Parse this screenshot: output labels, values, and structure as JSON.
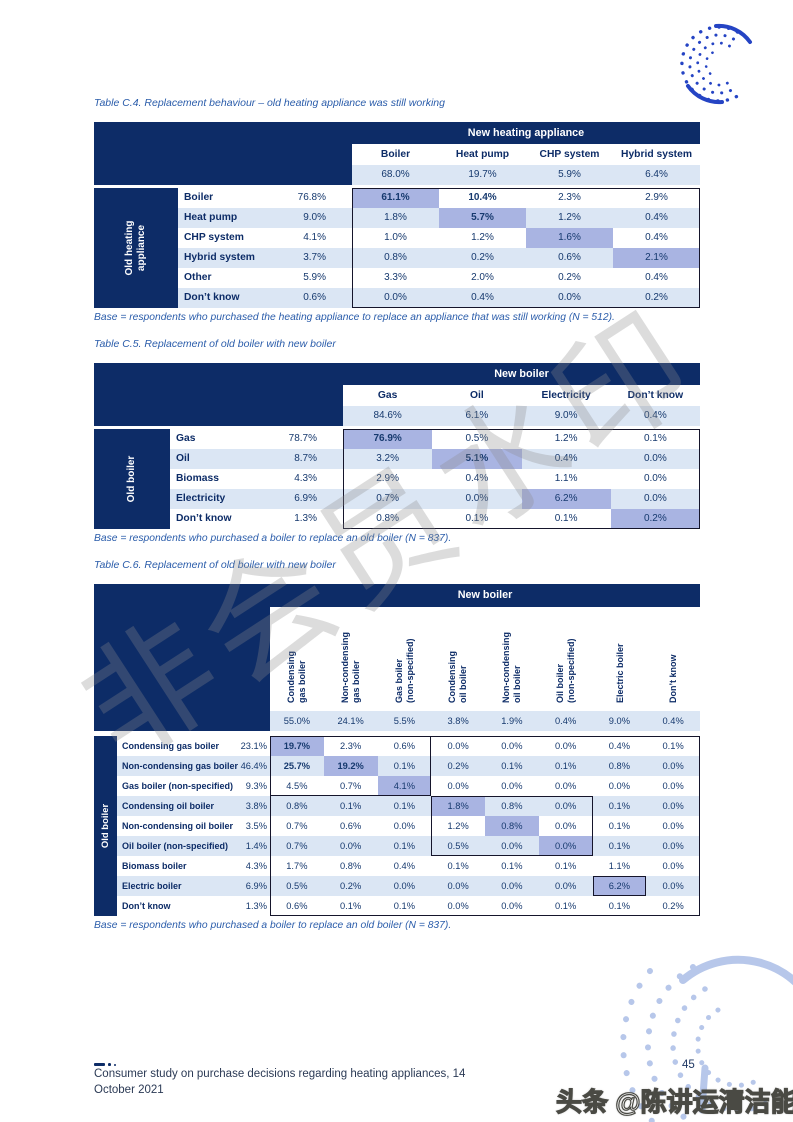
{
  "colors": {
    "navy": "#0d2c67",
    "light_blue": "#dbe6f4",
    "highlight": "#a9b4e2",
    "caption_blue": "#2a5caa",
    "value_text": "#16396e",
    "logo_blue": "#2544c4",
    "deco_blue": "#b7c7ea"
  },
  "tables": [
    {
      "caption": "Table C.4. Replacement behaviour – old heating appliance was still working",
      "banner": "New heating appliance",
      "side_label": "Old heating\nappliance",
      "columns": [
        "Boiler",
        "Heat pump",
        "CHP system",
        "Hybrid system"
      ],
      "totals": [
        "68.0%",
        "19.7%",
        "5.9%",
        "6.4%"
      ],
      "rows": [
        {
          "label": "Boiler",
          "total": "76.8%",
          "values": [
            "61.1%",
            "10.4%",
            "2.3%",
            "2.9%"
          ],
          "highlight": [
            0
          ],
          "bold": [
            0,
            1
          ]
        },
        {
          "label": "Heat pump",
          "total": "9.0%",
          "values": [
            "1.8%",
            "5.7%",
            "1.2%",
            "0.4%"
          ],
          "highlight": [
            1
          ],
          "bold": [
            1
          ]
        },
        {
          "label": "CHP system",
          "total": "4.1%",
          "values": [
            "1.0%",
            "1.2%",
            "1.6%",
            "0.4%"
          ],
          "highlight": [
            2
          ],
          "bold": []
        },
        {
          "label": "Hybrid system",
          "total": "3.7%",
          "values": [
            "0.8%",
            "0.2%",
            "0.6%",
            "2.1%"
          ],
          "highlight": [
            3
          ],
          "bold": []
        },
        {
          "label": "Other",
          "total": "5.9%",
          "values": [
            "3.3%",
            "2.0%",
            "0.2%",
            "0.4%"
          ],
          "highlight": [],
          "bold": []
        },
        {
          "label": "Don’t know",
          "total": "0.6%",
          "values": [
            "0.0%",
            "0.4%",
            "0.0%",
            "0.2%"
          ],
          "highlight": [],
          "bold": []
        }
      ],
      "outline_groups": [
        [
          0,
          5,
          0,
          3
        ]
      ],
      "base_note": "Base = respondents who purchased the heating appliance to replace an appliance that was still working (N = 512)."
    },
    {
      "caption": "Table C.5. Replacement of old boiler with new boiler",
      "banner": "New boiler",
      "side_label": "Old boiler",
      "columns": [
        "Gas",
        "Oil",
        "Electricity",
        "Don’t know"
      ],
      "totals": [
        "84.6%",
        "6.1%",
        "9.0%",
        "0.4%"
      ],
      "rows": [
        {
          "label": "Gas",
          "total": "78.7%",
          "values": [
            "76.9%",
            "0.5%",
            "1.2%",
            "0.1%"
          ],
          "highlight": [
            0
          ],
          "bold": [
            0
          ]
        },
        {
          "label": "Oil",
          "total": "8.7%",
          "values": [
            "3.2%",
            "5.1%",
            "0.4%",
            "0.0%"
          ],
          "highlight": [
            1
          ],
          "bold": [
            1
          ]
        },
        {
          "label": "Biomass",
          "total": "4.3%",
          "values": [
            "2.9%",
            "0.4%",
            "1.1%",
            "0.0%"
          ],
          "highlight": [],
          "bold": []
        },
        {
          "label": "Electricity",
          "total": "6.9%",
          "values": [
            "0.7%",
            "0.0%",
            "6.2%",
            "0.0%"
          ],
          "highlight": [
            2
          ],
          "bold": []
        },
        {
          "label": "Don’t know",
          "total": "1.3%",
          "values": [
            "0.8%",
            "0.1%",
            "0.1%",
            "0.2%"
          ],
          "highlight": [
            3
          ],
          "bold": []
        }
      ],
      "outline_groups": [
        [
          0,
          4,
          0,
          3
        ]
      ],
      "base_note": "Base = respondents who purchased a boiler to replace an old boiler (N = 837)."
    },
    {
      "caption": "Table C.6. Replacement of old boiler with new boiler",
      "banner": "New boiler",
      "side_label": "Old boiler",
      "columns": [
        "Condensing\ngas boiler",
        "Non-condensing\ngas boiler",
        "Gas boiler\n(non-specified)",
        "Condensing\noil boiler",
        "Non-condensing\noil boiler",
        "Oil boiler\n(non-specified)",
        "Electric boiler",
        "Don’t know"
      ],
      "totals": [
        "55.0%",
        "24.1%",
        "5.5%",
        "3.8%",
        "1.9%",
        "0.4%",
        "9.0%",
        "0.4%"
      ],
      "rows": [
        {
          "label": "Condensing gas boiler",
          "total": "23.1%",
          "values": [
            "19.7%",
            "2.3%",
            "0.6%",
            "0.0%",
            "0.0%",
            "0.0%",
            "0.4%",
            "0.1%"
          ],
          "highlight": [
            0
          ],
          "bold": [
            0
          ]
        },
        {
          "label": "Non-condensing gas boiler",
          "total": "46.4%",
          "values": [
            "25.7%",
            "19.2%",
            "0.1%",
            "0.2%",
            "0.1%",
            "0.1%",
            "0.8%",
            "0.0%"
          ],
          "highlight": [
            1
          ],
          "bold": [
            0,
            1
          ]
        },
        {
          "label": "Gas boiler (non-specified)",
          "total": "9.3%",
          "values": [
            "4.5%",
            "0.7%",
            "4.1%",
            "0.0%",
            "0.0%",
            "0.0%",
            "0.0%",
            "0.0%"
          ],
          "highlight": [
            2
          ],
          "bold": []
        },
        {
          "label": "Condensing oil boiler",
          "total": "3.8%",
          "values": [
            "0.8%",
            "0.1%",
            "0.1%",
            "1.8%",
            "0.8%",
            "0.0%",
            "0.1%",
            "0.0%"
          ],
          "highlight": [
            3
          ],
          "bold": []
        },
        {
          "label": "Non-condensing oil boiler",
          "total": "3.5%",
          "values": [
            "0.7%",
            "0.6%",
            "0.0%",
            "1.2%",
            "0.8%",
            "0.0%",
            "0.1%",
            "0.0%"
          ],
          "highlight": [
            4
          ],
          "bold": []
        },
        {
          "label": "Oil boiler (non-specified)",
          "total": "1.4%",
          "values": [
            "0.7%",
            "0.0%",
            "0.1%",
            "0.5%",
            "0.0%",
            "0.0%",
            "0.1%",
            "0.0%"
          ],
          "highlight": [
            5
          ],
          "bold": []
        },
        {
          "label": "Biomass boiler",
          "total": "4.3%",
          "values": [
            "1.7%",
            "0.8%",
            "0.4%",
            "0.1%",
            "0.1%",
            "0.1%",
            "1.1%",
            "0.0%"
          ],
          "highlight": [],
          "bold": []
        },
        {
          "label": "Electric boiler",
          "total": "6.9%",
          "values": [
            "0.5%",
            "0.2%",
            "0.0%",
            "0.0%",
            "0.0%",
            "0.0%",
            "6.2%",
            "0.0%"
          ],
          "highlight": [
            6
          ],
          "bold": []
        },
        {
          "label": "Don’t know",
          "total": "1.3%",
          "values": [
            "0.6%",
            "0.1%",
            "0.1%",
            "0.0%",
            "0.0%",
            "0.1%",
            "0.1%",
            "0.2%"
          ],
          "highlight": [],
          "bold": []
        }
      ],
      "outline_groups": [
        [
          0,
          8,
          0,
          7
        ],
        [
          0,
          2,
          0,
          2
        ],
        [
          3,
          5,
          3,
          5
        ],
        [
          7,
          7,
          6,
          6
        ]
      ],
      "base_note": "Base = respondents who purchased a boiler to replace an old boiler (N = 837)."
    }
  ],
  "footer": {
    "line1": "Consumer study on purchase decisions regarding heating appliances, 14",
    "line2": "October 2021",
    "page_number": "45"
  },
  "watermarks": {
    "center": "非会员水印",
    "bottom": "头条 @陈讲运清洁能源"
  }
}
